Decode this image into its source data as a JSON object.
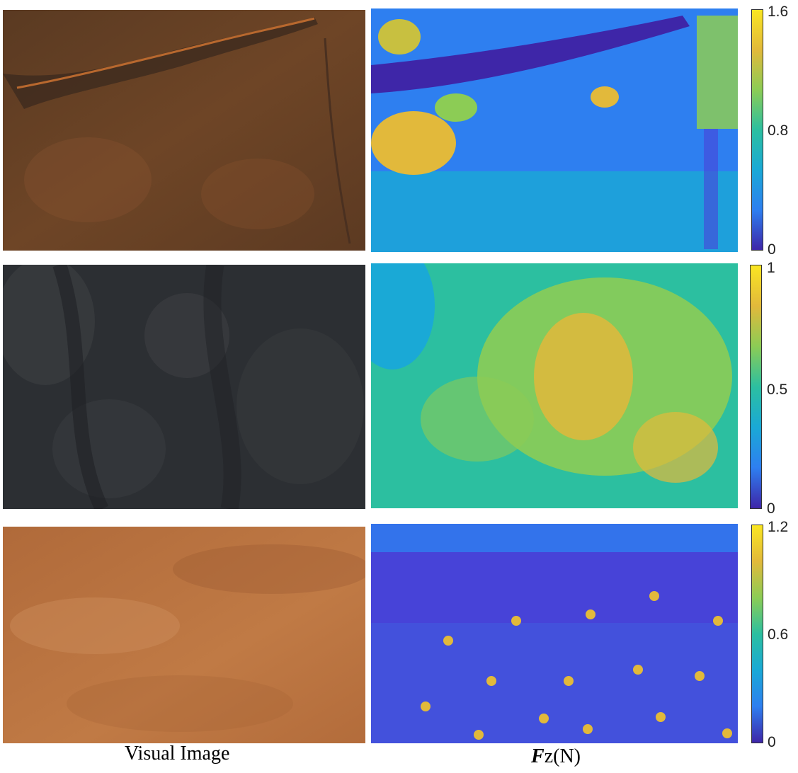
{
  "captions": {
    "left": "Visual Image",
    "right_symbol": "F",
    "right_rest": "z(N)"
  },
  "colorbars": [
    {
      "ticks": [
        "1.6",
        "0.8",
        "0"
      ]
    },
    {
      "ticks": [
        "1",
        "0.5",
        "0"
      ]
    },
    {
      "ticks": [
        "1.2",
        "0.6",
        "0"
      ]
    }
  ],
  "colors": {
    "colormap": [
      "#3e26a8",
      "#4743d8",
      "#2e7ff0",
      "#1aa9d6",
      "#2cbfa0",
      "#8ccc55",
      "#e2b93b",
      "#fae622"
    ]
  }
}
